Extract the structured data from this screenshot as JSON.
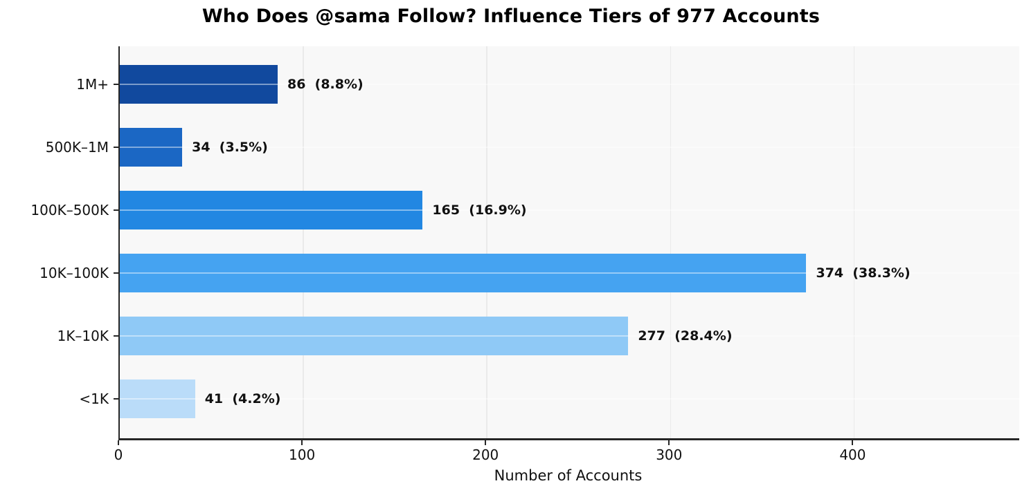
{
  "chart_data": {
    "type": "bar",
    "orientation": "horizontal",
    "title": "Who Does @sama Follow? Influence Tiers of 977 Accounts",
    "xlabel": "Number of Accounts",
    "ylabel": "",
    "total_accounts": 977,
    "categories": [
      "1M+",
      "500K–1M",
      "100K–500K",
      "10K–100K",
      "1K–10K",
      "<1K"
    ],
    "values": [
      86,
      34,
      165,
      374,
      277,
      41
    ],
    "percents": [
      "8.8%",
      "3.5%",
      "16.9%",
      "38.3%",
      "28.4%",
      "4.2%"
    ],
    "value_labels": [
      "86  (8.8%)",
      "34  (3.5%)",
      "165  (16.9%)",
      "374  (38.3%)",
      "277  (28.4%)",
      "41  (4.2%)"
    ],
    "bar_colors": [
      "#11499e",
      "#1b67c4",
      "#2287e2",
      "#45a3f1",
      "#8fc9f6",
      "#badcf9"
    ],
    "x_ticks": [
      0,
      100,
      200,
      300,
      400
    ],
    "xlim": [
      0,
      490
    ],
    "grid": true,
    "legend": "none",
    "plot_background": "#f8f8f8",
    "spine_color": "#262626"
  }
}
